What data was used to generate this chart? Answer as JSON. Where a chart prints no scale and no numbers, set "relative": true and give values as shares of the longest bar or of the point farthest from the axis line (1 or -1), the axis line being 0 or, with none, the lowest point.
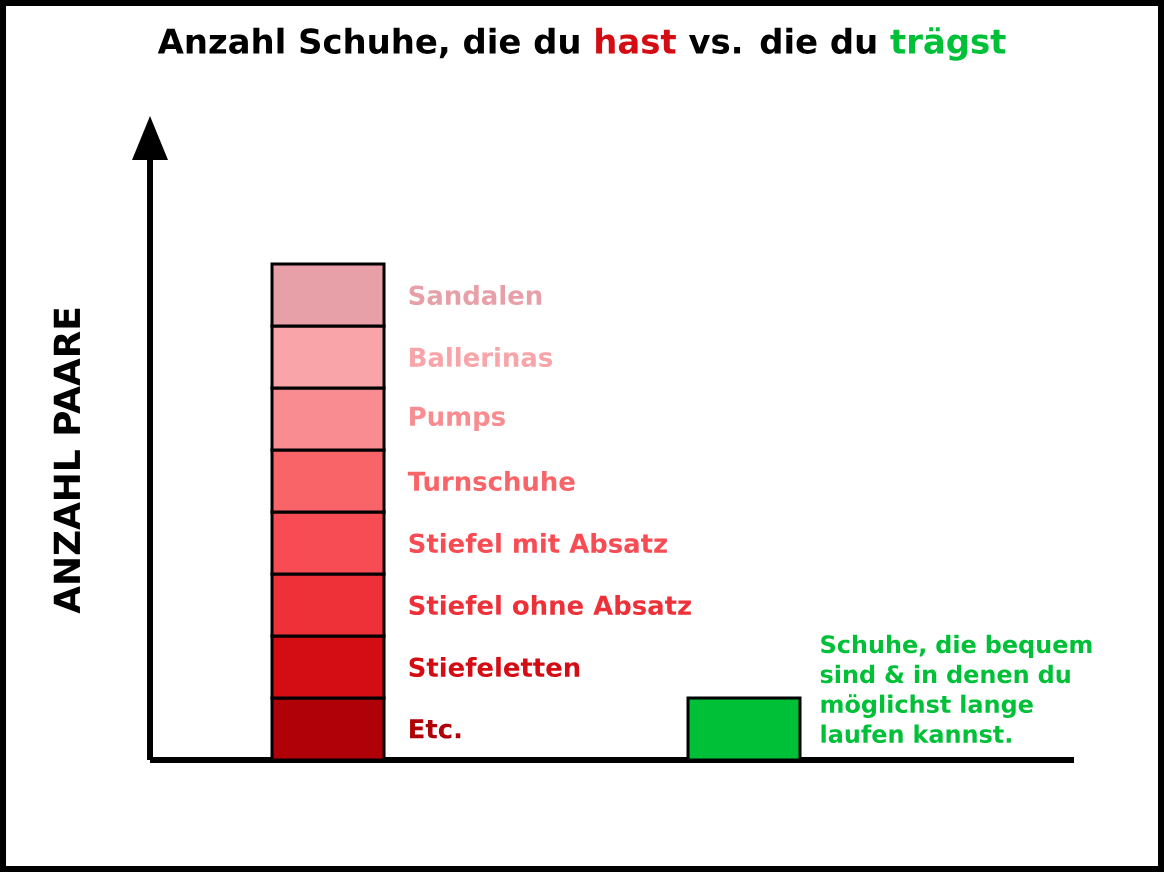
{
  "chart_data": {
    "type": "bar",
    "stacked": true,
    "relative": true,
    "title": "Anzahl Schuhe, die du",
    "annotations": [
      "hast",
      "vs. die du",
      "trägst"
    ],
    "ylabel": "ANZAHL PAARE",
    "categories": [
      null,
      null
    ],
    "series": [
      {
        "name": "Etc.",
        "color": "#b00008",
        "values": [
          0.125,
          null
        ]
      },
      {
        "name": "Stiefeletten",
        "color": "#d40c14",
        "values": [
          0.125,
          null
        ]
      },
      {
        "name": "Stiefel ohne Absatz",
        "color": "#ee3038",
        "values": [
          0.125,
          null
        ]
      },
      {
        "name": "Stiefel mit Absatz",
        "color": "#f84c54",
        "values": [
          0.125,
          null
        ]
      },
      {
        "name": "Turnschuhe",
        "color": "#f86468",
        "values": [
          0.125,
          null
        ]
      },
      {
        "name": "Pumps",
        "color": "#f88c90",
        "values": [
          0.125,
          null
        ]
      },
      {
        "name": "Ballerinas",
        "color": "#f8a4a8",
        "values": [
          0.125,
          null
        ]
      },
      {
        "name": "Sandalen",
        "color": "#e8a0a8",
        "values": [
          0.125,
          null
        ]
      },
      {
        "name": "Schuhe, die bequem sind & in denen du möglichst lange laufen kannst.",
        "color": "#00c038",
        "values": [
          null,
          0.125
        ]
      }
    ],
    "legend": false
  }
}
